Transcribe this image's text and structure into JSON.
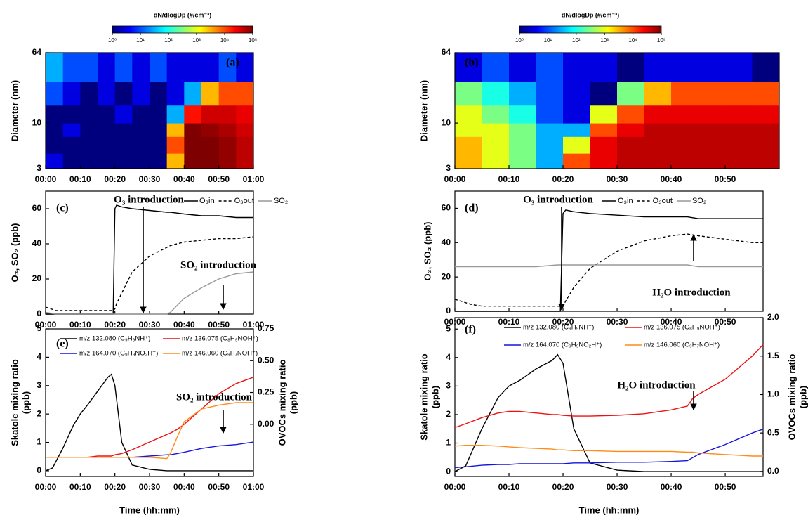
{
  "chart_data": [
    {
      "type": "heatmap",
      "panel": "(a)",
      "colorbar": {
        "title": "dN/dlogDp (#/cm⁻³)",
        "lim": [
          1,
          100000
        ],
        "ticks": [
          {
            "value": 1,
            "label": "10⁰"
          },
          {
            "value": 10,
            "label": "10¹"
          },
          {
            "value": 100,
            "label": "10²"
          },
          {
            "value": 1000,
            "label": "10³"
          },
          {
            "value": 10000,
            "label": "10⁴"
          },
          {
            "value": 100000,
            "label": "10⁵"
          }
        ]
      },
      "colormap": [
        "#00007f",
        "#0000ff",
        "#007fff",
        "#00ffff",
        "#7fff7f",
        "#ffff00",
        "#ff7f00",
        "#ff0000",
        "#7f0000"
      ],
      "ylabel": "Diameter (nm)",
      "ylog": true,
      "x_bins": [
        0,
        5,
        10,
        15,
        20,
        25,
        30,
        35,
        40,
        45,
        50,
        55,
        60
      ],
      "y_bins": [
        3,
        4.5,
        7,
        10,
        16,
        30,
        64
      ],
      "values": [
        [
          3,
          1,
          1,
          1,
          1,
          1,
          1,
          3000,
          100000,
          100000,
          80000,
          50000
        ],
        [
          1,
          1,
          1,
          1,
          1,
          1,
          1,
          10000,
          100000,
          100000,
          80000,
          50000
        ],
        [
          1,
          3,
          1,
          1,
          1,
          1,
          1,
          3000,
          100000,
          80000,
          60000,
          40000
        ],
        [
          1,
          1,
          1,
          1,
          3,
          1,
          1,
          30,
          20000,
          40000,
          40000,
          30000
        ],
        [
          10,
          3,
          1,
          3,
          1,
          3,
          1,
          3,
          30,
          3000,
          10000,
          10000
        ],
        [
          30,
          10,
          10,
          3,
          10,
          3,
          10,
          3,
          3,
          3,
          10,
          3
        ]
      ],
      "xlim": [
        0,
        60
      ],
      "xticks": [
        {
          "value": 0,
          "label": "00:00"
        },
        {
          "value": 10,
          "label": "00:10"
        },
        {
          "value": 20,
          "label": "00:20"
        },
        {
          "value": 30,
          "label": "00:30"
        },
        {
          "value": 40,
          "label": "00:40"
        },
        {
          "value": 50,
          "label": "00:50"
        },
        {
          "value": 60,
          "label": "01:00"
        }
      ],
      "ylim": [
        3,
        64
      ],
      "yticks": [
        3,
        10,
        64
      ]
    },
    {
      "type": "heatmap",
      "panel": "(b)",
      "colorbar": {
        "title": "dN/dlogDp (#/cm⁻³)",
        "lim": [
          1,
          100000
        ],
        "ticks": [
          {
            "value": 1,
            "label": "10⁰"
          },
          {
            "value": 10,
            "label": "10¹"
          },
          {
            "value": 100,
            "label": "10²"
          },
          {
            "value": 1000,
            "label": "10³"
          },
          {
            "value": 10000,
            "label": "10⁴"
          },
          {
            "value": 100000,
            "label": "10⁵"
          }
        ]
      },
      "colormap": [
        "#00007f",
        "#0000ff",
        "#007fff",
        "#00ffff",
        "#7fff7f",
        "#ffff00",
        "#ff7f00",
        "#ff0000",
        "#7f0000"
      ],
      "ylabel": "Diameter (nm)",
      "ylog": true,
      "x_bins": [
        0,
        5,
        10,
        15,
        20,
        25,
        30,
        35,
        40,
        45,
        50,
        55,
        60
      ],
      "y_bins": [
        3,
        4.5,
        7,
        10,
        16,
        30,
        64
      ],
      "values": [
        [
          3000,
          1000,
          300,
          30,
          10000,
          30000,
          50000,
          50000,
          50000,
          50000,
          50000,
          50000
        ],
        [
          3000,
          1000,
          300,
          30,
          1000,
          30000,
          50000,
          50000,
          50000,
          50000,
          50000,
          50000
        ],
        [
          1000,
          1000,
          300,
          30,
          30,
          10000,
          30000,
          50000,
          50000,
          50000,
          50000,
          50000
        ],
        [
          1000,
          300,
          100,
          10,
          3,
          1000,
          10000,
          30000,
          30000,
          30000,
          30000,
          30000
        ],
        [
          300,
          100,
          30,
          10,
          3,
          1,
          300,
          3000,
          10000,
          10000,
          10000,
          10000
        ],
        [
          3,
          10,
          3,
          10,
          3,
          3,
          1,
          3,
          3,
          3,
          3,
          1
        ]
      ],
      "xlim": [
        0,
        60
      ],
      "xticks": [
        {
          "value": 0,
          "label": "00:00"
        },
        {
          "value": 10,
          "label": "00:10"
        },
        {
          "value": 20,
          "label": "00:20"
        },
        {
          "value": 30,
          "label": "00:30"
        },
        {
          "value": 40,
          "label": "00:40"
        },
        {
          "value": 50,
          "label": "00:50"
        }
      ],
      "ylim": [
        3,
        64
      ],
      "yticks": [
        3,
        10,
        64
      ]
    },
    {
      "type": "line",
      "panel": "(c)",
      "ylabel": [
        "O₃, SO₂ (ppb)"
      ],
      "annotations": [
        "O₃ introduction",
        "SO₂ introduction"
      ],
      "x": [
        0,
        3,
        5,
        10,
        15,
        19,
        19.5,
        20,
        20.5,
        22,
        25,
        30,
        35,
        36,
        40,
        45,
        50,
        55,
        60
      ],
      "series": [
        {
          "name": "O₃in",
          "color": "#000000",
          "values": [
            0,
            0,
            0,
            0,
            0,
            0,
            0,
            60,
            62,
            61,
            60,
            59,
            58,
            58,
            57,
            56,
            56,
            55,
            55
          ]
        },
        {
          "name": "O₃out",
          "color": "#000000",
          "dash": true,
          "values": [
            4,
            2,
            2,
            2,
            2,
            2,
            2,
            3,
            6,
            12,
            24,
            33,
            38,
            39,
            41,
            42,
            43,
            43,
            44
          ]
        },
        {
          "name": "SO₂",
          "color": "#999999",
          "values": [
            1,
            0,
            0,
            0,
            0,
            0,
            0,
            0,
            0,
            0,
            0,
            0,
            0,
            1,
            9,
            15,
            20,
            23,
            24
          ]
        }
      ],
      "xlim": [
        0,
        60
      ],
      "xticks": [
        {
          "value": 0,
          "label": "00:00"
        },
        {
          "value": 10,
          "label": "00:10"
        },
        {
          "value": 20,
          "label": "00:20"
        },
        {
          "value": 30,
          "label": "00:30"
        },
        {
          "value": 40,
          "label": "00:40"
        },
        {
          "value": 50,
          "label": "00:50"
        },
        {
          "value": 60,
          "label": "01:00"
        }
      ],
      "ylim": [
        0,
        70
      ],
      "yticks": [
        0,
        20,
        40,
        60
      ],
      "legend": "top-right"
    },
    {
      "type": "line",
      "panel": "(d)",
      "ylabel": [
        "O₃, SO₂ (ppb)"
      ],
      "annotations": [
        "O₃ introduction",
        "H₂O introduction"
      ],
      "x": [
        0,
        3,
        5,
        10,
        15,
        19,
        19.5,
        20,
        20.5,
        22,
        25,
        30,
        35,
        40,
        43,
        45,
        50,
        55,
        57
      ],
      "series": [
        {
          "name": "O₃in",
          "color": "#000000",
          "values": [
            0,
            0,
            0,
            0,
            0,
            0,
            0,
            57,
            59,
            58,
            57,
            56,
            55,
            55,
            55,
            54,
            54,
            54,
            54
          ]
        },
        {
          "name": "O₃out",
          "color": "#000000",
          "dash": true,
          "values": [
            7,
            4,
            3,
            3,
            3,
            3,
            3,
            3,
            6,
            14,
            25,
            35,
            41,
            44,
            45,
            44,
            42,
            40,
            40
          ]
        },
        {
          "name": "SO₂",
          "color": "#999999",
          "values": [
            26,
            26,
            26,
            26,
            26,
            27,
            27,
            27,
            27,
            27,
            27,
            27,
            27,
            27,
            27,
            26,
            26,
            26,
            26
          ]
        }
      ],
      "xlim": [
        0,
        57
      ],
      "xticks": [
        {
          "value": 0,
          "label": "00:00"
        },
        {
          "value": 10,
          "label": "00:10"
        },
        {
          "value": 20,
          "label": "00:20"
        },
        {
          "value": 30,
          "label": "00:30"
        },
        {
          "value": 40,
          "label": "00:40"
        },
        {
          "value": 50,
          "label": "00:50"
        }
      ],
      "ylim": [
        0,
        70
      ],
      "yticks": [
        0,
        20,
        40,
        60
      ],
      "legend": "top-right"
    },
    {
      "type": "line",
      "panel": "(e)",
      "ylabel": [
        "Skatole mixing ratio",
        "(ppb)"
      ],
      "y2label": [
        "OVOCs mixing ratio",
        "(ppb)"
      ],
      "xlabel": "Time (hh:mm)",
      "annotations": [
        "SO₂ introduction"
      ],
      "x": [
        0,
        2,
        5,
        8,
        10,
        12,
        15,
        18,
        19,
        20,
        22,
        25,
        30,
        35,
        36,
        38,
        40,
        45,
        50,
        55,
        60
      ],
      "series": [
        {
          "name": "m/z 132.080 (C₉H₉NH⁺)",
          "color": "#000000",
          "values": [
            0,
            0.1,
            0.8,
            1.6,
            2.0,
            2.3,
            2.8,
            3.3,
            3.4,
            3.0,
            1.0,
            0.2,
            0.05,
            0,
            0,
            0,
            0,
            0,
            0,
            0,
            0
          ]
        },
        {
          "name": "m/z 136.075 (C₈H₉NOH⁺)",
          "color": "#ee1111",
          "axis": "y2",
          "values": [
            -0.26,
            -0.26,
            -0.26,
            -0.26,
            -0.26,
            -0.26,
            -0.25,
            -0.25,
            -0.25,
            -0.24,
            -0.23,
            -0.2,
            -0.14,
            -0.08,
            -0.07,
            -0.04,
            0,
            0.12,
            0.24,
            0.32,
            0.37
          ]
        },
        {
          "name": "m/z 164.070 (C₉H₉NO₂H⁺)",
          "color": "#1515dd",
          "axis": "y2",
          "values": [
            -0.26,
            -0.26,
            -0.26,
            -0.26,
            -0.26,
            -0.26,
            -0.26,
            -0.26,
            -0.26,
            -0.26,
            -0.26,
            -0.26,
            -0.25,
            -0.24,
            -0.24,
            -0.23,
            -0.22,
            -0.19,
            -0.17,
            -0.16,
            -0.14
          ]
        },
        {
          "name": "m/z 146.060 (C₉H₇NOH⁺)",
          "color": "#ff8c1a",
          "axis": "y2",
          "values": [
            -0.26,
            -0.26,
            -0.26,
            -0.26,
            -0.26,
            -0.26,
            -0.26,
            -0.26,
            -0.26,
            -0.26,
            -0.26,
            -0.26,
            -0.26,
            -0.27,
            -0.23,
            -0.1,
            0.02,
            0.12,
            0.15,
            0.17,
            0.17
          ]
        }
      ],
      "xlim": [
        0,
        60
      ],
      "xticks": [
        {
          "value": 0,
          "label": "00:00"
        },
        {
          "value": 10,
          "label": "00:10"
        },
        {
          "value": 20,
          "label": "00:20"
        },
        {
          "value": 30,
          "label": "00:30"
        },
        {
          "value": 40,
          "label": "00:40"
        },
        {
          "value": 50,
          "label": "00:50"
        },
        {
          "value": 60,
          "label": "01:00"
        }
      ],
      "ylim": [
        -0.2,
        5
      ],
      "yticks": [
        0,
        1,
        2,
        3,
        4,
        5
      ],
      "y2lim": [
        -0.41,
        0.75
      ],
      "y2ticks": [
        {
          "value": 0,
          "label": "0.00"
        },
        0.25,
        {
          "value": 0.5,
          "label": "0.50"
        },
        0.75
      ],
      "legend": "top"
    },
    {
      "type": "line",
      "panel": "(f)",
      "ylabel": [
        "Skatole mixing ratio",
        "(ppb)"
      ],
      "y2label": [
        "OVOCs mixing ratio",
        "(ppb)"
      ],
      "xlabel": "Time (hh:mm)",
      "annotations": [
        "H₂O introduction"
      ],
      "x": [
        0,
        2,
        5,
        8,
        10,
        12,
        15,
        18,
        19,
        20,
        22,
        25,
        30,
        35,
        40,
        43,
        44,
        45,
        50,
        55,
        57
      ],
      "series": [
        {
          "name": "m/z 132.080 (C₉H₉NH⁺)",
          "color": "#000000",
          "values": [
            0,
            0.2,
            1.5,
            2.6,
            3.0,
            3.2,
            3.6,
            3.9,
            4.1,
            3.8,
            1.5,
            0.3,
            0.05,
            0,
            0,
            0,
            0,
            0,
            0,
            0,
            0
          ]
        },
        {
          "name": "m/z 136.075 (C₈H₉NOH⁺)",
          "color": "#ee1111",
          "axis": "y2",
          "values": [
            0.57,
            0.62,
            0.7,
            0.76,
            0.78,
            0.78,
            0.76,
            0.74,
            0.74,
            0.73,
            0.72,
            0.72,
            0.73,
            0.75,
            0.8,
            0.85,
            0.95,
            1.0,
            1.2,
            1.5,
            1.65
          ]
        },
        {
          "name": "m/z 164.070 (C₉H₉NO₂H⁺)",
          "color": "#1515dd",
          "axis": "y2",
          "values": [
            0.05,
            0.06,
            0.08,
            0.09,
            0.09,
            0.1,
            0.1,
            0.1,
            0.1,
            0.1,
            0.11,
            0.11,
            0.12,
            0.12,
            0.13,
            0.14,
            0.18,
            0.22,
            0.35,
            0.5,
            0.55
          ]
        },
        {
          "name": "m/z 146.060 (C₉H₇NOH⁺)",
          "color": "#ff8c1a",
          "axis": "y2",
          "values": [
            0.33,
            0.34,
            0.34,
            0.33,
            0.32,
            0.31,
            0.3,
            0.29,
            0.28,
            0.28,
            0.27,
            0.27,
            0.26,
            0.26,
            0.26,
            0.25,
            0.25,
            0.24,
            0.22,
            0.2,
            0.2
          ]
        }
      ],
      "xlim": [
        0,
        57
      ],
      "xticks": [
        {
          "value": 0,
          "label": "00:00"
        },
        {
          "value": 10,
          "label": "00:10"
        },
        {
          "value": 20,
          "label": "00:20"
        },
        {
          "value": 30,
          "label": "00:30"
        },
        {
          "value": 40,
          "label": "00:40"
        },
        {
          "value": 50,
          "label": "00:50"
        }
      ],
      "ylim": [
        -0.17,
        5.4
      ],
      "yticks": [
        0,
        1,
        2,
        3,
        4,
        5
      ],
      "y2lim": [
        -0.065,
        2.0
      ],
      "y2ticks": [
        {
          "value": 0,
          "label": "0.0"
        },
        0.5,
        {
          "value": 1,
          "label": "1.0"
        },
        1.5,
        {
          "value": 2,
          "label": "2.0"
        }
      ],
      "legend": "top"
    }
  ]
}
